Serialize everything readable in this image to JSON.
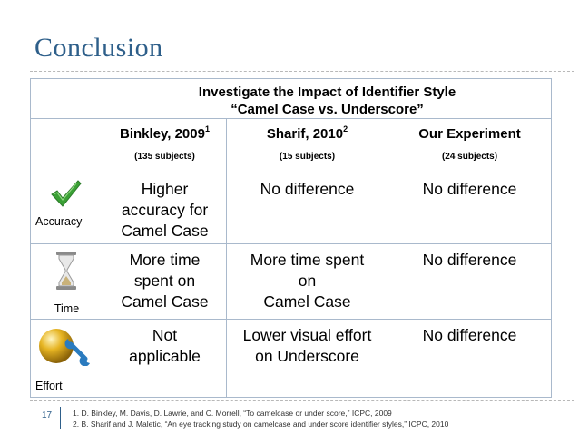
{
  "slide": {
    "title": "Conclusion",
    "number": "17"
  },
  "table": {
    "header_line1": "Investigate the Impact of Identifier Style",
    "header_line2": "“Camel Case vs. Underscore”",
    "columns": [
      {
        "name": "Binkley, 2009",
        "sup": "1",
        "subjects": "(135 subjects)"
      },
      {
        "name": "Sharif, 2010",
        "sup": "2",
        "subjects": "(15 subjects)"
      },
      {
        "name": "Our Experiment",
        "sup": "",
        "subjects": "(24 subjects)"
      }
    ],
    "rows": [
      {
        "label": "Accuracy",
        "icon": "checkmark-icon",
        "cells": [
          [
            "Higher",
            "accuracy for",
            "Camel Case"
          ],
          [
            "No difference"
          ],
          [
            "No difference"
          ]
        ]
      },
      {
        "label": "Time",
        "icon": "hourglass-icon",
        "cells": [
          [
            "More time",
            "spent on",
            "Camel Case"
          ],
          [
            "More time spent",
            "on",
            "Camel Case"
          ],
          [
            "No difference"
          ]
        ]
      },
      {
        "label": "Effort",
        "icon": "gold-ball-wrench-icon",
        "cells": [
          [
            "Not",
            "applicable"
          ],
          [
            "Lower visual effort",
            "on Underscore"
          ],
          [
            "No difference"
          ]
        ]
      }
    ]
  },
  "footnotes": [
    "1.  D. Binkley, M. Davis, D. Lawrie, and C. Morrell, “To camelcase or under score,” ICPC, 2009",
    "2.  B. Sharif and J. Maletic, “An eye tracking study on camelcase and under score identifier styles,” ICPC, 2010"
  ],
  "colors": {
    "title": "#2e5f8a",
    "check": "#3aa035",
    "gold": "#d9a514",
    "wrench": "#2a7bbf"
  }
}
